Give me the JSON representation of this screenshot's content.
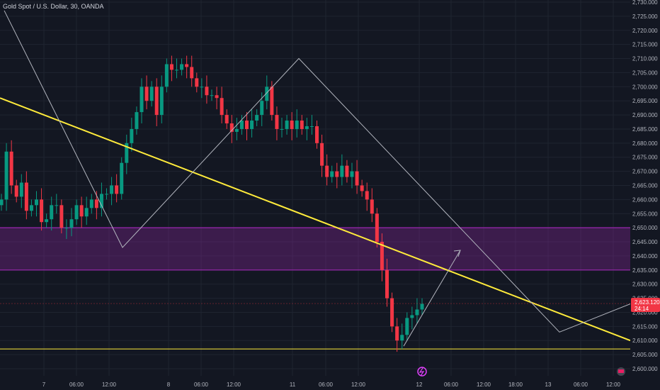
{
  "header": {
    "title": "Gold Spot / U.S. Dollar, 30, OANDA"
  },
  "price_tag": {
    "price": "2,623.120",
    "countdown": "24:14"
  },
  "colors": {
    "background": "#131722",
    "up": "#089981",
    "down": "#f23645",
    "zone": "#9c27b0",
    "trendline": "#ffeb3b",
    "support": "#ffeb3b",
    "projection": "#b2b5be"
  },
  "icons": {
    "event_marker": "lightning-icon",
    "logo_marker": "flag-icon"
  },
  "chart_data": {
    "type": "candlestick",
    "title": "Gold Spot / U.S. Dollar, 30, OANDA",
    "ylim": [
      2600,
      2730
    ],
    "y_ticks": [
      "2,600.000",
      "2,605.000",
      "2,610.000",
      "2,615.000",
      "2,620.000",
      "2,625.000",
      "2,630.000",
      "2,635.000",
      "2,640.000",
      "2,645.000",
      "2,650.000",
      "2,655.000",
      "2,660.000",
      "2,665.000",
      "2,670.000",
      "2,675.000",
      "2,680.000",
      "2,685.000",
      "2,690.000",
      "2,695.000",
      "2,700.000",
      "2,705.000",
      "2,710.000",
      "2,715.000",
      "2,720.000",
      "2,725.000",
      "2,730.000"
    ],
    "x_ticks": [
      "7",
      "06:00",
      "12:00",
      "8",
      "06:00",
      "12:00",
      "11",
      "06:00",
      "12:00",
      "12",
      "06:00",
      "12:00",
      "18:00",
      "13",
      "06:00",
      "12:00"
    ],
    "close_path": [
      2660,
      2677,
      2665,
      2661,
      2666,
      2656,
      2658,
      2660,
      2652,
      2653,
      2658,
      2658,
      2650,
      2650,
      2653,
      2658,
      2654,
      2657,
      2660,
      2657,
      2662,
      2662,
      2665,
      2662,
      2673,
      2680,
      2685,
      2691,
      2700,
      2695,
      2700,
      2690,
      2700,
      2708,
      2706,
      2706,
      2708,
      2707,
      2703,
      2700,
      2700,
      2697,
      2697,
      2696,
      2690,
      2687,
      2684,
      2685,
      2688,
      2685,
      2688,
      2690,
      2695,
      2700,
      2690,
      2685,
      2685,
      2688,
      2685,
      2688,
      2685,
      2686,
      2686,
      2680,
      2672,
      2668,
      2670,
      2668,
      2672,
      2668,
      2670,
      2665,
      2663,
      2660,
      2655,
      2645,
      2635,
      2625,
      2615,
      2610,
      2612,
      2618,
      2619,
      2621,
      2623
    ],
    "resistance_zone": [
      2635,
      2650
    ],
    "support_level": 2607,
    "trendline": {
      "from": 2696,
      "to": 2610
    },
    "projection_zigzag": [
      2727,
      2643,
      2710,
      2613,
      2623
    ],
    "projection_arrow": {
      "from": 2608,
      "to": 2642
    }
  }
}
